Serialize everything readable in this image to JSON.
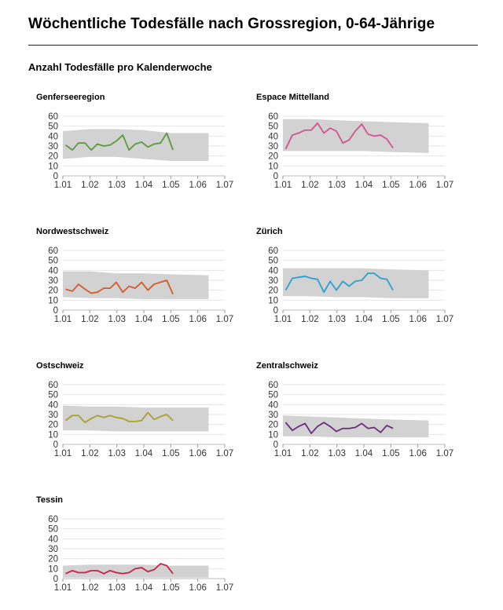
{
  "page": {
    "title": "Wöchentliche Todesfälle nach Grossregion, 0-64-Jährige",
    "subtitle": "Anzahl Todesfälle pro Kalenderwoche"
  },
  "chart_data": [
    {
      "type": "line",
      "title": "Genferseeregion",
      "color": "#5a9a3a",
      "xlim": [
        1.01,
        1.07
      ],
      "ylim": [
        0,
        60
      ],
      "xticks": [
        "1.01",
        "1.02",
        "1.03",
        "1.04",
        "1.05",
        "1.06",
        "1.07"
      ],
      "yticks": [
        "0",
        "10",
        "20",
        "30",
        "40",
        "50",
        "60"
      ],
      "band_x": [
        1.01,
        1.02,
        1.03,
        1.04,
        1.05,
        1.064
      ],
      "band_upper": [
        45,
        47,
        47,
        46,
        43,
        43
      ],
      "band_lower": [
        17,
        19,
        19,
        17,
        15,
        15
      ],
      "series": {
        "x": [
          1.011,
          1.0135,
          1.0158,
          1.0182,
          1.0205,
          1.0228,
          1.0252,
          1.0275,
          1.0298,
          1.0322,
          1.0345,
          1.0368,
          1.0392,
          1.0415,
          1.0438,
          1.0462,
          1.0485,
          1.0508
        ],
        "values": [
          31,
          26,
          33,
          33,
          26,
          32,
          30,
          31,
          35,
          41,
          26,
          32,
          34,
          29,
          32,
          33,
          43,
          26
        ]
      }
    },
    {
      "type": "line",
      "title": "Espace Mittelland",
      "color": "#d0538f",
      "xlim": [
        1.01,
        1.07
      ],
      "ylim": [
        0,
        60
      ],
      "xticks": [
        "1.01",
        "1.02",
        "1.03",
        "1.04",
        "1.05",
        "1.06",
        "1.07"
      ],
      "yticks": [
        "0",
        "10",
        "20",
        "30",
        "40",
        "50",
        "60"
      ],
      "band_x": [
        1.01,
        1.02,
        1.03,
        1.04,
        1.05,
        1.064
      ],
      "band_upper": [
        57,
        57,
        56,
        55,
        54,
        53
      ],
      "band_lower": [
        25,
        25,
        25,
        25,
        24,
        23
      ],
      "series": {
        "x": [
          1.011,
          1.0135,
          1.0158,
          1.0182,
          1.0205,
          1.0228,
          1.0252,
          1.0275,
          1.0298,
          1.0322,
          1.0345,
          1.0368,
          1.0392,
          1.0415,
          1.0438,
          1.0462,
          1.0485,
          1.0508
        ],
        "values": [
          27,
          41,
          43,
          46,
          46,
          53,
          43,
          48,
          45,
          33,
          36,
          45,
          52,
          42,
          40,
          41,
          37,
          28
        ]
      }
    },
    {
      "type": "line",
      "title": "Nordwestschweiz",
      "color": "#d45a2a",
      "xlim": [
        1.01,
        1.07
      ],
      "ylim": [
        0,
        60
      ],
      "xticks": [
        "1.01",
        "1.02",
        "1.03",
        "1.04",
        "1.05",
        "1.06",
        "1.07"
      ],
      "yticks": [
        "0",
        "10",
        "20",
        "30",
        "40",
        "50",
        "60"
      ],
      "band_x": [
        1.01,
        1.02,
        1.03,
        1.04,
        1.05,
        1.064
      ],
      "band_upper": [
        39,
        39,
        37,
        37,
        36,
        35
      ],
      "band_lower": [
        13,
        12,
        12,
        11,
        11,
        11
      ],
      "series": {
        "x": [
          1.011,
          1.0135,
          1.0158,
          1.0182,
          1.0205,
          1.0228,
          1.0252,
          1.0275,
          1.0298,
          1.0322,
          1.0345,
          1.0368,
          1.0392,
          1.0415,
          1.0438,
          1.0462,
          1.0485,
          1.0508
        ],
        "values": [
          21,
          19,
          26,
          21,
          17,
          18,
          22,
          22,
          28,
          18,
          24,
          22,
          28,
          20,
          26,
          28,
          30,
          16
        ]
      }
    },
    {
      "type": "line",
      "title": "Zürich",
      "color": "#2a9fd0",
      "xlim": [
        1.01,
        1.07
      ],
      "ylim": [
        0,
        60
      ],
      "xticks": [
        "1.01",
        "1.02",
        "1.03",
        "1.04",
        "1.05",
        "1.06",
        "1.07"
      ],
      "yticks": [
        "0",
        "10",
        "20",
        "30",
        "40",
        "50",
        "60"
      ],
      "band_x": [
        1.01,
        1.02,
        1.03,
        1.04,
        1.05,
        1.064
      ],
      "band_upper": [
        42,
        42,
        42,
        42,
        41,
        40
      ],
      "band_lower": [
        14,
        14,
        13,
        13,
        12,
        12
      ],
      "series": {
        "x": [
          1.011,
          1.0135,
          1.0158,
          1.0182,
          1.0205,
          1.0228,
          1.0252,
          1.0275,
          1.0298,
          1.0322,
          1.0345,
          1.0368,
          1.0392,
          1.0415,
          1.0438,
          1.0462,
          1.0485,
          1.0508
        ],
        "values": [
          20,
          32,
          33,
          34,
          32,
          31,
          18,
          29,
          20,
          29,
          24,
          29,
          30,
          37,
          37,
          32,
          31,
          20
        ]
      }
    },
    {
      "type": "line",
      "title": "Ostschweiz",
      "color": "#a9a12a",
      "xlim": [
        1.01,
        1.07
      ],
      "ylim": [
        0,
        60
      ],
      "xticks": [
        "1.01",
        "1.02",
        "1.03",
        "1.04",
        "1.05",
        "1.06",
        "1.07"
      ],
      "yticks": [
        "0",
        "10",
        "20",
        "30",
        "40",
        "50",
        "60"
      ],
      "band_x": [
        1.01,
        1.02,
        1.03,
        1.04,
        1.05,
        1.064
      ],
      "band_upper": [
        39,
        38,
        38,
        37,
        37,
        37
      ],
      "band_lower": [
        14,
        14,
        13,
        13,
        13,
        13
      ],
      "series": {
        "x": [
          1.011,
          1.0135,
          1.0158,
          1.0182,
          1.0205,
          1.0228,
          1.0252,
          1.0275,
          1.0298,
          1.0322,
          1.0345,
          1.0368,
          1.0392,
          1.0415,
          1.0438,
          1.0462,
          1.0485,
          1.0508
        ],
        "values": [
          24,
          29,
          29,
          22,
          26,
          29,
          27,
          29,
          27,
          26,
          23,
          23,
          24,
          32,
          25,
          28,
          30,
          24
        ]
      }
    },
    {
      "type": "line",
      "title": "Zentralschweiz",
      "color": "#6a2e7a",
      "xlim": [
        1.01,
        1.07
      ],
      "ylim": [
        0,
        60
      ],
      "xticks": [
        "1.01",
        "1.02",
        "1.03",
        "1.04",
        "1.05",
        "1.06",
        "1.07"
      ],
      "yticks": [
        "0",
        "10",
        "20",
        "30",
        "40",
        "50",
        "60"
      ],
      "band_x": [
        1.01,
        1.02,
        1.03,
        1.04,
        1.05,
        1.064
      ],
      "band_upper": [
        29,
        28,
        27,
        26,
        25,
        24
      ],
      "band_lower": [
        8,
        8,
        7,
        7,
        7,
        7
      ],
      "series": {
        "x": [
          1.011,
          1.0135,
          1.0158,
          1.0182,
          1.0205,
          1.0228,
          1.0252,
          1.0275,
          1.0298,
          1.0322,
          1.0345,
          1.0368,
          1.0392,
          1.0415,
          1.0438,
          1.0462,
          1.0485,
          1.0508
        ],
        "values": [
          22,
          14,
          18,
          21,
          11,
          18,
          22,
          18,
          13,
          16,
          16,
          17,
          21,
          16,
          17,
          12,
          19,
          16
        ]
      }
    },
    {
      "type": "line",
      "title": "Tessin",
      "color": "#c8204a",
      "xlim": [
        1.01,
        1.07
      ],
      "ylim": [
        0,
        60
      ],
      "xticks": [
        "1.01",
        "1.02",
        "1.03",
        "1.04",
        "1.05",
        "1.06",
        "1.07"
      ],
      "yticks": [
        "0",
        "10",
        "20",
        "30",
        "40",
        "50",
        "60"
      ],
      "band_x": [
        1.01,
        1.02,
        1.03,
        1.04,
        1.05,
        1.064
      ],
      "band_upper": [
        13,
        14,
        14,
        14,
        13,
        13
      ],
      "band_lower": [
        1,
        1,
        1,
        1,
        1,
        1
      ],
      "series": {
        "x": [
          1.011,
          1.0135,
          1.0158,
          1.0182,
          1.0205,
          1.0228,
          1.0252,
          1.0275,
          1.0298,
          1.0322,
          1.0345,
          1.0368,
          1.0392,
          1.0415,
          1.0438,
          1.0462,
          1.0485,
          1.0508
        ],
        "values": [
          5,
          8,
          6,
          6,
          8,
          8,
          5,
          8,
          6,
          5,
          6,
          10,
          11,
          7,
          9,
          15,
          13,
          5
        ]
      }
    }
  ]
}
